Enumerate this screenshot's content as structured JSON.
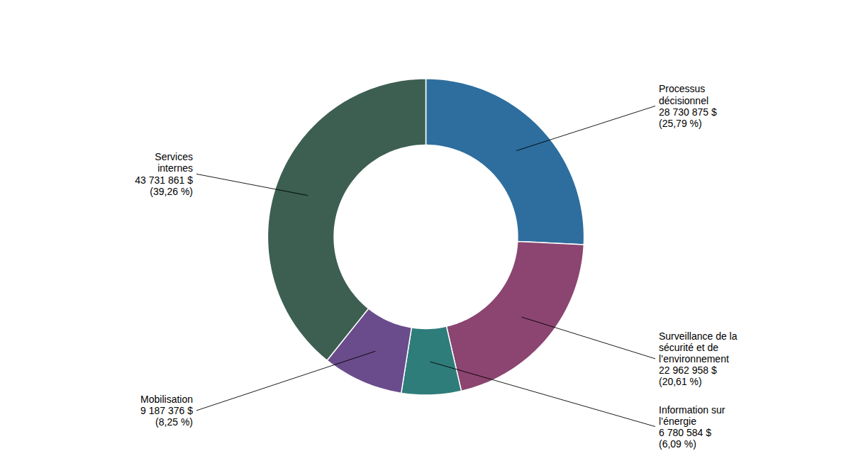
{
  "chart_data": {
    "type": "donut",
    "categories": [
      "Processus\ndécisionnel\n28 730 875 $\n(25,79 %)",
      "Surveillance de la\nsécurité et de\nl’environnement\n22 962 958 $\n(20,61 %)",
      "Information sur\nl’énergie\n6 780 584 $\n(6,09 %)",
      "Mobilisation\n9 187 376 $\n(8,25 %)",
      "Services\ninternes\n43 731 861 $\n(39,26 %)"
    ],
    "values": [
      25.79,
      20.61,
      6.09,
      8.25,
      39.26
    ],
    "colors": [
      "#2e6e9e",
      "#8b4570",
      "#2e7d7a",
      "#6a4c8c",
      "#3d5f52"
    ]
  }
}
